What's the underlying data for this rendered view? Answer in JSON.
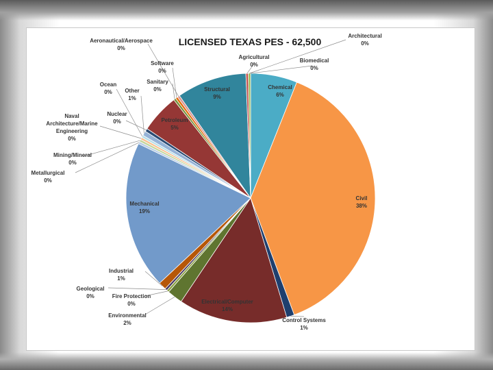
{
  "chart_data": {
    "type": "pie",
    "title": "LICENSED TEXAS PES - 62,500",
    "start_angle_deg": 0,
    "slices": [
      {
        "name": "Biomedical",
        "label": "0%",
        "value": 0.0,
        "color": "#e2c290"
      },
      {
        "name": "Chemical",
        "label": "6%",
        "value": 6,
        "color": "#4bacc6"
      },
      {
        "name": "Civil",
        "label": "38%",
        "value": 38,
        "color": "#f79646"
      },
      {
        "name": "Control Systems",
        "label": "1%",
        "value": 1,
        "color": "#1f3f6e"
      },
      {
        "name": "Electrical/Computer",
        "label": "14%",
        "value": 14,
        "color": "#772c2a"
      },
      {
        "name": "Environmental",
        "label": "2%",
        "value": 2,
        "color": "#5f7530"
      },
      {
        "name": "Fire Protection",
        "label": "0%",
        "value": 0.3,
        "color": "#8aa140"
      },
      {
        "name": "Geological",
        "label": "0%",
        "value": 0.3,
        "color": "#4a3a60"
      },
      {
        "name": "Industrial",
        "label": "1%",
        "value": 1,
        "color": "#b65708"
      },
      {
        "name": "Mechanical",
        "label": "19%",
        "value": 19,
        "color": "#729aca"
      },
      {
        "name": "Metallurgical",
        "label": "0%",
        "value": 0.3,
        "color": "#b9cde5"
      },
      {
        "name": "Mining/Mineral",
        "label": "0%",
        "value": 0.3,
        "color": "#c3d69b"
      },
      {
        "name": "Naval Architecture/Marine Engineering",
        "label": "0%",
        "value": 0.3,
        "color": "#fac090"
      },
      {
        "name": "Ocean",
        "label": "0%",
        "value": 0.3,
        "color": "#b7dee8"
      },
      {
        "name": "Other",
        "label": "1%",
        "value": 0.6,
        "color": "#95b3d7"
      },
      {
        "name": "Nuclear",
        "label": "0%",
        "value": 0.4,
        "color": "#2c4d75"
      },
      {
        "name": "Petroleum",
        "label": "5%",
        "value": 5,
        "color": "#953735"
      },
      {
        "name": "Sanitary",
        "label": "0%",
        "value": 0.3,
        "color": "#77933c"
      },
      {
        "name": "Software",
        "label": "0%",
        "value": 0.3,
        "color": "#e46c0a"
      },
      {
        "name": "Aeronautical/Aerospace",
        "label": "0%",
        "value": 0.3,
        "color": "#d99694"
      },
      {
        "name": "Structural",
        "label": "9%",
        "value": 9,
        "color": "#31859c"
      },
      {
        "name": "Agricultural",
        "label": "0%",
        "value": 0.3,
        "color": "#c0504d"
      },
      {
        "name": "Architectural",
        "label": "0%",
        "value": 0.3,
        "color": "#9bbb59"
      }
    ]
  }
}
